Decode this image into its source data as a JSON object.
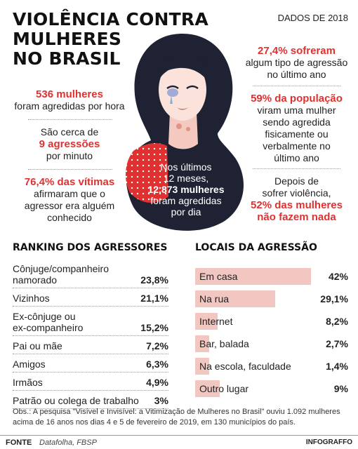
{
  "header": {
    "title_lines": [
      "VIOLÊNCIA CONTRA",
      "MULHERES",
      "NO BRASIL"
    ],
    "dados": "DADOS DE 2018"
  },
  "left_stats": {
    "s1": {
      "highlight": "536 mulheres",
      "text": "foram agredidas por hora"
    },
    "s2": {
      "text": "São cerca de",
      "highlight": "9 agressões",
      "text2": "por minuto"
    },
    "s3": {
      "highlight": "76,4% das vítimas",
      "lines": [
        "afirmaram que o",
        "agressor era alguém",
        "conhecido"
      ]
    }
  },
  "right_stats": {
    "s1": {
      "highlight": "27,4% sofreram",
      "lines": [
        "algum tipo de agressão",
        "no último ano"
      ]
    },
    "s2": {
      "highlight": "59% da população",
      "lines": [
        "viram uma mulher",
        "sendo agredida",
        "fisicamente ou",
        "verbalmente no",
        "último ano"
      ]
    },
    "s3": {
      "lines": [
        "Depois de",
        "sofrer violência,"
      ],
      "highlight_lines": [
        "52% das mulheres",
        "não fazem nada"
      ]
    }
  },
  "center_stat": {
    "lines": [
      "Nos últimos",
      "12 meses,"
    ],
    "bold": "12.873 mulheres",
    "lines2": [
      "foram agredidas",
      "por dia"
    ]
  },
  "ranking": {
    "title": "RANKING DOS AGRESSORES"
  },
  "locais": {
    "title": "LOCAIS DA AGRESSÃO"
  },
  "chart_data": [
    {
      "type": "table",
      "title": "RANKING DOS AGRESSORES",
      "rows": [
        {
          "label": [
            "Cônjuge/companheiro",
            "namorado"
          ],
          "value": "23,8%"
        },
        {
          "label": [
            "Vizinhos"
          ],
          "value": "21,1%"
        },
        {
          "label": [
            "Ex-cônjuge ou",
            "ex-companheiro"
          ],
          "value": "15,2%"
        },
        {
          "label": [
            "Pai ou mãe"
          ],
          "value": "7,2%"
        },
        {
          "label": [
            "Amigos"
          ],
          "value": "6,3%"
        },
        {
          "label": [
            "Irmãos"
          ],
          "value": "4,9%"
        },
        {
          "label": [
            "Patrão ou colega de trabalho"
          ],
          "value": "3%"
        }
      ]
    },
    {
      "type": "bar",
      "title": "LOCAIS DA AGRESSÃO",
      "categories": [
        "Em casa",
        "Na rua",
        "Internet",
        "Bar, balada",
        "Na escola, faculdade",
        "Outro lugar"
      ],
      "values": [
        42,
        29.1,
        8.2,
        2.7,
        1.4,
        9
      ],
      "value_labels": [
        "42%",
        "29,1%",
        "8,2%",
        "2,7%",
        "1,4%",
        "9%"
      ],
      "bar_color": "#f2c6c1",
      "xlim": [
        0,
        42
      ]
    }
  ],
  "obs": "Obs.: A pesquisa \"Visível e Invisível: a Vitimização de Mulheres no Brasil\" ouviu 1.092 mulheres acima de 16 anos nos dias 4 e 5 de fevereiro de 2019, em 130 municípios do país.",
  "footer": {
    "fonte_label": "FONTE",
    "source": "Datafolha, FBSP",
    "brand": "INFOGRAFFO"
  },
  "colors": {
    "accent_red": "#e03131",
    "navy": "#1e2233",
    "bar_pink": "#f2c6c1"
  }
}
